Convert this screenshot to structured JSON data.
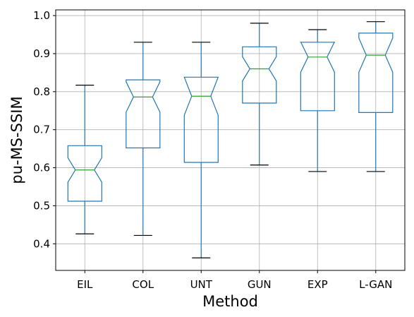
{
  "chart_data": {
    "type": "box",
    "notched": true,
    "xlabel": "Method",
    "ylabel": "pu-MS-SSIM",
    "ylim": [
      0.33,
      1.015
    ],
    "yticks": [
      "0.4",
      "0.5",
      "0.6",
      "0.7",
      "0.8",
      "0.9",
      "1.0"
    ],
    "grid": true,
    "categories": [
      "EIL",
      "COL",
      "UNT",
      "GUN",
      "EXP",
      "L-GAN"
    ],
    "boxes": [
      {
        "label": "EIL",
        "whisker_low": 0.426,
        "q1": 0.512,
        "median": 0.594,
        "q3": 0.658,
        "whisker_high": 0.817,
        "notch_low": 0.562,
        "notch_high": 0.626
      },
      {
        "label": "COL",
        "whisker_low": 0.422,
        "q1": 0.652,
        "median": 0.786,
        "q3": 0.831,
        "whisker_high": 0.93,
        "notch_low": 0.746,
        "notch_high": 0.826
      },
      {
        "label": "UNT",
        "whisker_low": 0.363,
        "q1": 0.614,
        "median": 0.788,
        "q3": 0.838,
        "whisker_high": 0.93,
        "notch_low": 0.738,
        "notch_high": 0.838
      },
      {
        "label": "GUN",
        "whisker_low": 0.607,
        "q1": 0.77,
        "median": 0.86,
        "q3": 0.918,
        "whisker_high": 0.98,
        "notch_low": 0.828,
        "notch_high": 0.892
      },
      {
        "label": "EXP",
        "whisker_low": 0.59,
        "q1": 0.75,
        "median": 0.891,
        "q3": 0.93,
        "whisker_high": 0.963,
        "notch_low": 0.851,
        "notch_high": 0.931
      },
      {
        "label": "L-GAN",
        "whisker_low": 0.59,
        "q1": 0.745,
        "median": 0.896,
        "q3": 0.954,
        "whisker_high": 0.984,
        "notch_low": 0.851,
        "notch_high": 0.941
      }
    ]
  },
  "colors": {
    "box": "#1f77b4",
    "median": "#2ca02c",
    "whisker_cap": "#000000",
    "grid": "#b0b0b0",
    "axis": "#000000"
  }
}
